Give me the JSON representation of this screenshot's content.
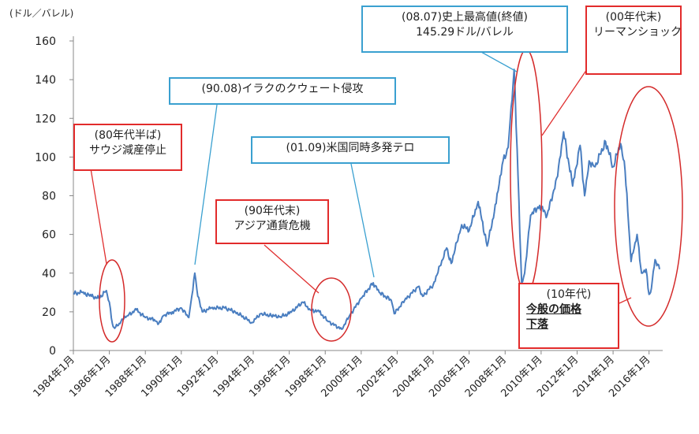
{
  "chart_data": {
    "type": "line",
    "ylabel": "(ドル／バレル)",
    "ylim": [
      0,
      160
    ],
    "yticks": [
      0,
      20,
      40,
      60,
      80,
      100,
      120,
      140,
      160
    ],
    "xlim": [
      "1984-01",
      "2016-08"
    ],
    "xtick_labels": [
      "1984年1月",
      "1986年1月",
      "1988年1月",
      "1990年1月",
      "1992年1月",
      "1994年1月",
      "1996年1月",
      "1998年1月",
      "2000年1月",
      "2002年1月",
      "2004年1月",
      "2006年1月",
      "2008年1月",
      "2010年1月",
      "2012年1月",
      "2014年1月",
      "2016年1月"
    ],
    "grid": false,
    "series": [
      {
        "color": "#4a7ec0",
        "points": [
          [
            "1984-01",
            29.5
          ],
          [
            "1984-07",
            30
          ],
          [
            "1985-01",
            28
          ],
          [
            "1985-06",
            27
          ],
          [
            "1985-11",
            31
          ],
          [
            "1986-01",
            25
          ],
          [
            "1986-03",
            14
          ],
          [
            "1986-04",
            12
          ],
          [
            "1986-07",
            13
          ],
          [
            "1986-10",
            16
          ],
          [
            "1987-01",
            18
          ],
          [
            "1987-07",
            21
          ],
          [
            "1988-01",
            17
          ],
          [
            "1988-07",
            16
          ],
          [
            "1988-10",
            14
          ],
          [
            "1989-01",
            18
          ],
          [
            "1989-07",
            20
          ],
          [
            "1990-01",
            22
          ],
          [
            "1990-06",
            17
          ],
          [
            "1990-08",
            28
          ],
          [
            "1990-10",
            40
          ],
          [
            "1990-12",
            28
          ],
          [
            "1991-03",
            20
          ],
          [
            "1991-09",
            22
          ],
          [
            "1992-06",
            22
          ],
          [
            "1993-01",
            20
          ],
          [
            "1993-12",
            14.5
          ],
          [
            "1994-06",
            19
          ],
          [
            "1995-01",
            18
          ],
          [
            "1995-07",
            17.5
          ],
          [
            "1996-01",
            19
          ],
          [
            "1996-10",
            25
          ],
          [
            "1997-03",
            21
          ],
          [
            "1997-09",
            20
          ],
          [
            "1998-03",
            15
          ],
          [
            "1998-12",
            11
          ],
          [
            "1999-06",
            19
          ],
          [
            "2000-01",
            27
          ],
          [
            "2000-09",
            35
          ],
          [
            "2001-01",
            30
          ],
          [
            "2001-09",
            26
          ],
          [
            "2001-11",
            19
          ],
          [
            "2002-06",
            26
          ],
          [
            "2003-03",
            33
          ],
          [
            "2003-06",
            28
          ],
          [
            "2004-01",
            34
          ],
          [
            "2004-10",
            53
          ],
          [
            "2005-01",
            45
          ],
          [
            "2005-08",
            65
          ],
          [
            "2006-01",
            62
          ],
          [
            "2006-07",
            77
          ],
          [
            "2007-01",
            54
          ],
          [
            "2007-07",
            76
          ],
          [
            "2007-11",
            96
          ],
          [
            "2008-03",
            105
          ],
          [
            "2008-07",
            145.29
          ],
          [
            "2008-09",
            104
          ],
          [
            "2008-12",
            35
          ],
          [
            "2009-02",
            40
          ],
          [
            "2009-06",
            70
          ],
          [
            "2009-12",
            75
          ],
          [
            "2010-05",
            70
          ],
          [
            "2010-12",
            90
          ],
          [
            "2011-04",
            113
          ],
          [
            "2011-10",
            85
          ],
          [
            "2012-03",
            106
          ],
          [
            "2012-06",
            80
          ],
          [
            "2012-09",
            98
          ],
          [
            "2013-01",
            95
          ],
          [
            "2013-08",
            108
          ],
          [
            "2014-01",
            95
          ],
          [
            "2014-06",
            107
          ],
          [
            "2014-09",
            93
          ],
          [
            "2014-12",
            58
          ],
          [
            "2015-01",
            46
          ],
          [
            "2015-05",
            60
          ],
          [
            "2015-08",
            40
          ],
          [
            "2015-11",
            42
          ],
          [
            "2016-01",
            29
          ],
          [
            "2016-02",
            30
          ],
          [
            "2016-05",
            47
          ],
          [
            "2016-08",
            42
          ]
        ]
      }
    ],
    "annotations": [
      {
        "id": "a1",
        "lines": [
          "(80年代半ば)",
          "サウジ減産停止"
        ],
        "style": "red",
        "date": "1986-03",
        "value": 22
      },
      {
        "id": "a2",
        "lines": [
          "(90.08)イラクのクウェート侵攻"
        ],
        "style": "blue",
        "date": "1990-10",
        "value": 40
      },
      {
        "id": "a3",
        "lines": [
          "(01.09)米国同時多発テロ"
        ],
        "style": "blue",
        "date": "2000-09",
        "value": 35
      },
      {
        "id": "a4",
        "lines": [
          "(90年代末)",
          "アジア通貨危機"
        ],
        "style": "red",
        "date": "1998-06",
        "value": 21
      },
      {
        "id": "a5",
        "lines": [
          "(08.07)史上最高値(終値)",
          "145.29ドル/バレル"
        ],
        "style": "blue",
        "date": "2008-07",
        "value": 145
      },
      {
        "id": "a6",
        "lines": [
          "(00年代末)",
          "リーマンショック"
        ],
        "style": "red",
        "date": "2008-12",
        "value": 95
      },
      {
        "id": "a7",
        "lines": [
          "(10年代)",
          "今般の価格",
          "下落"
        ],
        "style": "red",
        "date": "2015-06",
        "value": 60
      }
    ]
  }
}
